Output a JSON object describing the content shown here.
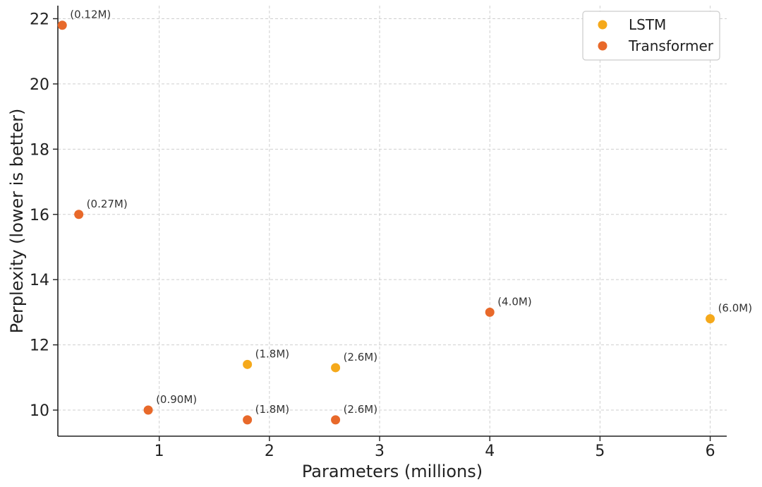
{
  "chart_data": {
    "type": "scatter",
    "title": "",
    "xlabel": "Parameters (millions)",
    "ylabel": "Perplexity (lower is better)",
    "xlim": [
      0.08,
      6.15
    ],
    "ylim": [
      9.2,
      22.4
    ],
    "xticks": [
      1,
      2,
      3,
      4,
      5,
      6
    ],
    "yticks": [
      10,
      12,
      14,
      16,
      18,
      20,
      22
    ],
    "grid": true,
    "legend_position": "top-right",
    "series": [
      {
        "name": "LSTM",
        "color": "#F5A91B",
        "points": [
          {
            "x": 1.8,
            "y": 11.4,
            "label": "(1.8M)"
          },
          {
            "x": 2.6,
            "y": 11.3,
            "label": "(2.6M)"
          },
          {
            "x": 6.0,
            "y": 12.8,
            "label": "(6.0M)"
          }
        ]
      },
      {
        "name": "Transformer",
        "color": "#E8692A",
        "points": [
          {
            "x": 0.12,
            "y": 21.8,
            "label": "(0.12M)"
          },
          {
            "x": 0.27,
            "y": 16.0,
            "label": "(0.27M)"
          },
          {
            "x": 0.9,
            "y": 10.0,
            "label": "(0.90M)"
          },
          {
            "x": 1.8,
            "y": 9.7,
            "label": "(1.8M)"
          },
          {
            "x": 2.6,
            "y": 9.7,
            "label": "(2.6M)"
          },
          {
            "x": 4.0,
            "y": 13.0,
            "label": "(4.0M)"
          }
        ]
      }
    ]
  }
}
